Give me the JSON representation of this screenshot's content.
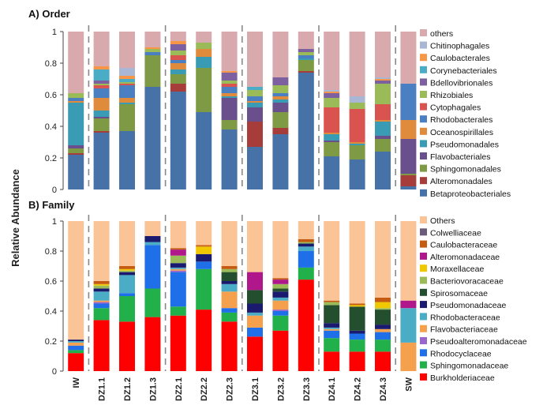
{
  "figure": {
    "ylabel": "Relative Abundance",
    "x_categories": [
      "IW",
      "DZ1.1",
      "DZ1.2",
      "DZ1.3",
      "DZ2.1",
      "DZ2.2",
      "DZ2.3",
      "DZ3.1",
      "DZ3.2",
      "DZ3.3",
      "DZ4.1",
      "DZ4.2",
      "DZ4.3",
      "SW"
    ],
    "group_boundaries_after": [
      0,
      3,
      6,
      9,
      12
    ]
  },
  "chart_data": [
    {
      "type": "bar",
      "stacked": true,
      "title": "A) Order",
      "xlabel": "",
      "ylabel": "Relative Abundance",
      "ylim": [
        0,
        1
      ],
      "yticks": [
        "0",
        "0.2",
        "0.4",
        "0.6",
        "0.8",
        "1"
      ],
      "categories": [
        "IW",
        "DZ1.1",
        "DZ1.2",
        "DZ1.3",
        "DZ2.1",
        "DZ2.2",
        "DZ2.3",
        "DZ3.1",
        "DZ3.2",
        "DZ3.3",
        "DZ4.1",
        "DZ4.2",
        "DZ4.3",
        "SW"
      ],
      "legend_position": "right",
      "series": [
        {
          "name": "Betaproteobacteriales",
          "color": "#4672a8",
          "values": [
            0.22,
            0.36,
            0.37,
            0.65,
            0.62,
            0.49,
            0.38,
            0.27,
            0.35,
            0.74,
            0.21,
            0.19,
            0.24,
            0.02
          ]
        },
        {
          "name": "Alteromonadales",
          "color": "#a63d3a",
          "values": [
            0.01,
            0.01,
            0.0,
            0.0,
            0.05,
            0.0,
            0.0,
            0.16,
            0.04,
            0.01,
            0.0,
            0.0,
            0.0,
            0.07
          ]
        },
        {
          "name": "Sphingomonadales",
          "color": "#7e9a44",
          "values": [
            0.03,
            0.08,
            0.17,
            0.2,
            0.06,
            0.28,
            0.06,
            0.0,
            0.1,
            0.07,
            0.09,
            0.09,
            0.08,
            0.01
          ]
        },
        {
          "name": "Flavobacteriales",
          "color": "#6a4f8d",
          "values": [
            0.02,
            0.01,
            0.0,
            0.0,
            0.0,
            0.0,
            0.14,
            0.09,
            0.06,
            0.0,
            0.01,
            0.0,
            0.02,
            0.22
          ]
        },
        {
          "name": "Pseudomonadales",
          "color": "#3a9bb5",
          "values": [
            0.27,
            0.04,
            0.01,
            0.0,
            0.03,
            0.07,
            0.01,
            0.03,
            0.02,
            0.01,
            0.04,
            0.01,
            0.09,
            0.0
          ]
        },
        {
          "name": "Oceanospirillales",
          "color": "#e08a3c",
          "values": [
            0.01,
            0.08,
            0.03,
            0.0,
            0.04,
            0.05,
            0.02,
            0.01,
            0.02,
            0.0,
            0.01,
            0.01,
            0.01,
            0.12
          ]
        },
        {
          "name": "Rhodobacterales",
          "color": "#4a7fc1",
          "values": [
            0.02,
            0.06,
            0.08,
            0.02,
            0.02,
            0.0,
            0.04,
            0.03,
            0.02,
            0.02,
            0.0,
            0.0,
            0.0,
            0.23
          ]
        },
        {
          "name": "Cytophagales",
          "color": "#d9534f",
          "values": [
            0.0,
            0.02,
            0.01,
            0.0,
            0.03,
            0.0,
            0.02,
            0.0,
            0.0,
            0.0,
            0.16,
            0.21,
            0.1,
            0.0
          ]
        },
        {
          "name": "Rhizobiales",
          "color": "#9bbb59",
          "values": [
            0.03,
            0.01,
            0.01,
            0.02,
            0.03,
            0.04,
            0.02,
            0.04,
            0.05,
            0.02,
            0.06,
            0.04,
            0.13,
            0.0
          ]
        },
        {
          "name": "Bdellovibrionales",
          "color": "#7d60a0",
          "values": [
            0.0,
            0.02,
            0.0,
            0.0,
            0.04,
            0.0,
            0.05,
            0.0,
            0.05,
            0.02,
            0.03,
            0.0,
            0.02,
            0.0
          ]
        },
        {
          "name": "Corynebacteriales",
          "color": "#4bacc6",
          "values": [
            0.0,
            0.07,
            0.02,
            0.0,
            0.0,
            0.0,
            0.0,
            0.02,
            0.0,
            0.0,
            0.0,
            0.0,
            0.0,
            0.0
          ]
        },
        {
          "name": "Caulobacterales",
          "color": "#f79646",
          "values": [
            0.0,
            0.02,
            0.02,
            0.01,
            0.02,
            0.0,
            0.01,
            0.0,
            0.0,
            0.0,
            0.01,
            0.0,
            0.01,
            0.0
          ]
        },
        {
          "name": "Chitinophagales",
          "color": "#a9b7d4",
          "values": [
            0.0,
            0.0,
            0.05,
            0.0,
            0.0,
            0.0,
            0.0,
            0.0,
            0.0,
            0.0,
            0.01,
            0.04,
            0.01,
            0.0
          ]
        },
        {
          "name": "others",
          "color": "#d8a9ad",
          "values": [
            0.39,
            0.22,
            0.23,
            0.1,
            0.06,
            0.07,
            0.25,
            0.35,
            0.29,
            0.11,
            0.37,
            0.41,
            0.29,
            0.33
          ]
        }
      ]
    },
    {
      "type": "bar",
      "stacked": true,
      "title": "B) Family",
      "xlabel": "",
      "ylabel": "Relative Abundance",
      "ylim": [
        0,
        1
      ],
      "yticks": [
        "0",
        "0.2",
        "0.4",
        "0.6",
        "0.8",
        "1"
      ],
      "categories": [
        "IW",
        "DZ1.1",
        "DZ1.2",
        "DZ1.3",
        "DZ2.1",
        "DZ2.2",
        "DZ2.3",
        "DZ3.1",
        "DZ3.2",
        "DZ3.3",
        "DZ4.1",
        "DZ4.2",
        "DZ4.3",
        "SW"
      ],
      "legend_position": "right",
      "series": [
        {
          "name": "Burkholderiaceae",
          "color": "#ff0000",
          "values": [
            0.12,
            0.34,
            0.33,
            0.36,
            0.37,
            0.41,
            0.33,
            0.23,
            0.27,
            0.61,
            0.13,
            0.13,
            0.13,
            0.0
          ]
        },
        {
          "name": "Sphingomonadaceae",
          "color": "#22b04b",
          "values": [
            0.02,
            0.08,
            0.17,
            0.19,
            0.06,
            0.27,
            0.06,
            0.0,
            0.1,
            0.08,
            0.09,
            0.08,
            0.08,
            0.0
          ]
        },
        {
          "name": "Rhodocyclaceae",
          "color": "#1e6fe8",
          "values": [
            0.03,
            0.03,
            0.02,
            0.29,
            0.23,
            0.05,
            0.03,
            0.06,
            0.03,
            0.11,
            0.05,
            0.04,
            0.05,
            0.0
          ]
        },
        {
          "name": "Pseudoalteromonadaceae",
          "color": "#9966cc",
          "values": [
            0.0,
            0.01,
            0.0,
            0.0,
            0.01,
            0.0,
            0.0,
            0.0,
            0.01,
            0.0,
            0.0,
            0.0,
            0.0,
            0.0
          ]
        },
        {
          "name": "Flavobacteriaceae",
          "color": "#f4a04c",
          "values": [
            0.02,
            0.01,
            0.0,
            0.0,
            0.01,
            0.0,
            0.11,
            0.08,
            0.06,
            0.0,
            0.01,
            0.0,
            0.02,
            0.19
          ]
        },
        {
          "name": "Rhodobacteraceae",
          "color": "#4bacc6",
          "values": [
            0.01,
            0.06,
            0.12,
            0.02,
            0.01,
            0.0,
            0.05,
            0.02,
            0.02,
            0.03,
            0.01,
            0.0,
            0.0,
            0.23
          ]
        },
        {
          "name": "Pseudomonadaceae",
          "color": "#1a1a6e",
          "values": [
            0.01,
            0.02,
            0.02,
            0.04,
            0.03,
            0.05,
            0.02,
            0.06,
            0.04,
            0.02,
            0.03,
            0.02,
            0.03,
            0.0
          ]
        },
        {
          "name": "Spirosomaceae",
          "color": "#234f2e",
          "values": [
            0.0,
            0.0,
            0.0,
            0.0,
            0.0,
            0.0,
            0.06,
            0.09,
            0.02,
            0.0,
            0.12,
            0.16,
            0.1,
            0.0
          ]
        },
        {
          "name": "Bacteriovoracaceae",
          "color": "#9bbb59",
          "values": [
            0.0,
            0.02,
            0.01,
            0.0,
            0.05,
            0.0,
            0.02,
            0.0,
            0.03,
            0.01,
            0.02,
            0.0,
            0.01,
            0.0
          ]
        },
        {
          "name": "Moraxellaceae",
          "color": "#f0c800",
          "values": [
            0.0,
            0.01,
            0.01,
            0.0,
            0.0,
            0.05,
            0.0,
            0.0,
            0.0,
            0.0,
            0.0,
            0.01,
            0.04,
            0.0
          ]
        },
        {
          "name": "Alteromonadaceae",
          "color": "#b0178a",
          "values": [
            0.0,
            0.0,
            0.0,
            0.0,
            0.04,
            0.0,
            0.0,
            0.12,
            0.03,
            0.0,
            0.0,
            0.0,
            0.0,
            0.05
          ]
        },
        {
          "name": "Caulobacteraceae",
          "color": "#c55a11",
          "values": [
            0.0,
            0.02,
            0.02,
            0.0,
            0.01,
            0.01,
            0.02,
            0.0,
            0.01,
            0.02,
            0.01,
            0.01,
            0.03,
            0.0
          ]
        },
        {
          "name": "Colwelliaceae",
          "color": "#6b5b7b",
          "values": [
            0.0,
            0.0,
            0.0,
            0.0,
            0.0,
            0.0,
            0.0,
            0.0,
            0.0,
            0.0,
            0.0,
            0.0,
            0.0,
            0.0
          ]
        },
        {
          "name": "Others",
          "color": "#fac497",
          "values": [
            0.79,
            0.4,
            0.3,
            0.1,
            0.18,
            0.16,
            0.3,
            0.34,
            0.38,
            0.12,
            0.53,
            0.55,
            0.51,
            0.53
          ]
        }
      ]
    }
  ]
}
